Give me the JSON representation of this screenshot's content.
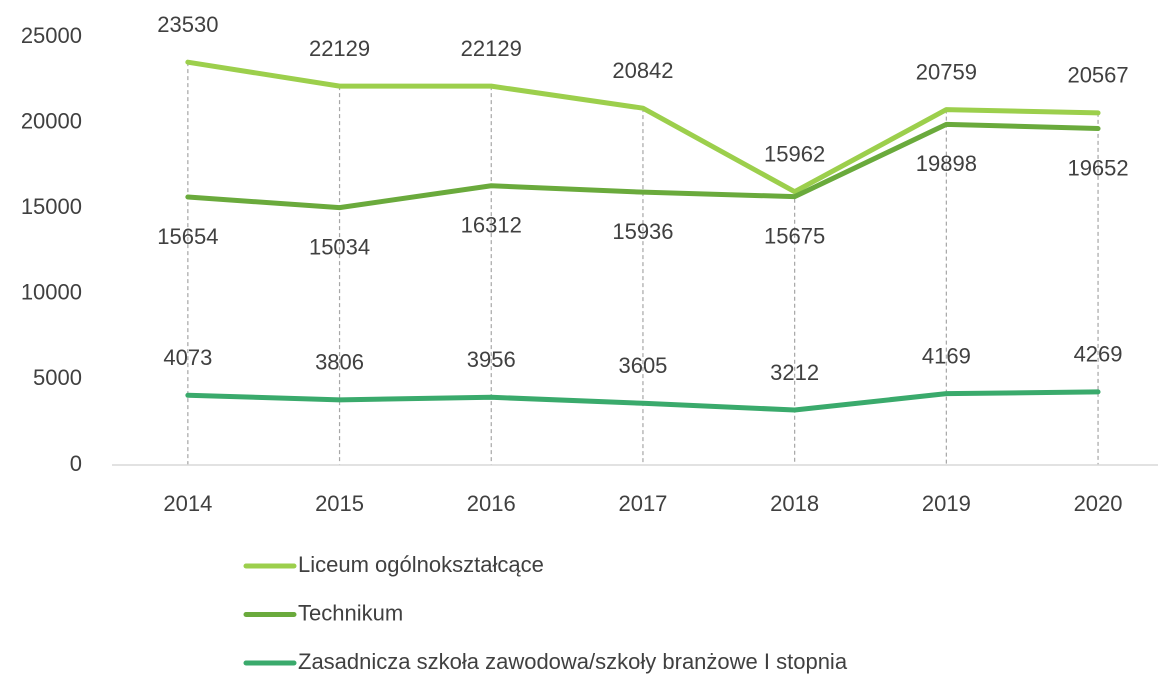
{
  "chart_data": {
    "type": "line",
    "categories": [
      "2014",
      "2015",
      "2016",
      "2017",
      "2018",
      "2019",
      "2020"
    ],
    "series": [
      {
        "name": "Liceum ogólnokształcące",
        "color": "#9ccf4c",
        "values": [
          23530,
          22129,
          22129,
          20842,
          15962,
          20759,
          20567
        ]
      },
      {
        "name": "Technikum",
        "color": "#6aaa3c",
        "values": [
          15654,
          15034,
          16312,
          15936,
          15675,
          19898,
          19652
        ]
      },
      {
        "name": "Zasadnicza szkoła zawodowa/szkoły branżowe I stopnia",
        "color": "#3aaa6c",
        "values": [
          4073,
          3806,
          3956,
          3605,
          3212,
          4169,
          4269
        ]
      }
    ],
    "ylim": [
      0,
      25000
    ],
    "yticks": [
      0,
      5000,
      10000,
      15000,
      20000,
      25000
    ],
    "grid": false,
    "legend": "bottom"
  }
}
